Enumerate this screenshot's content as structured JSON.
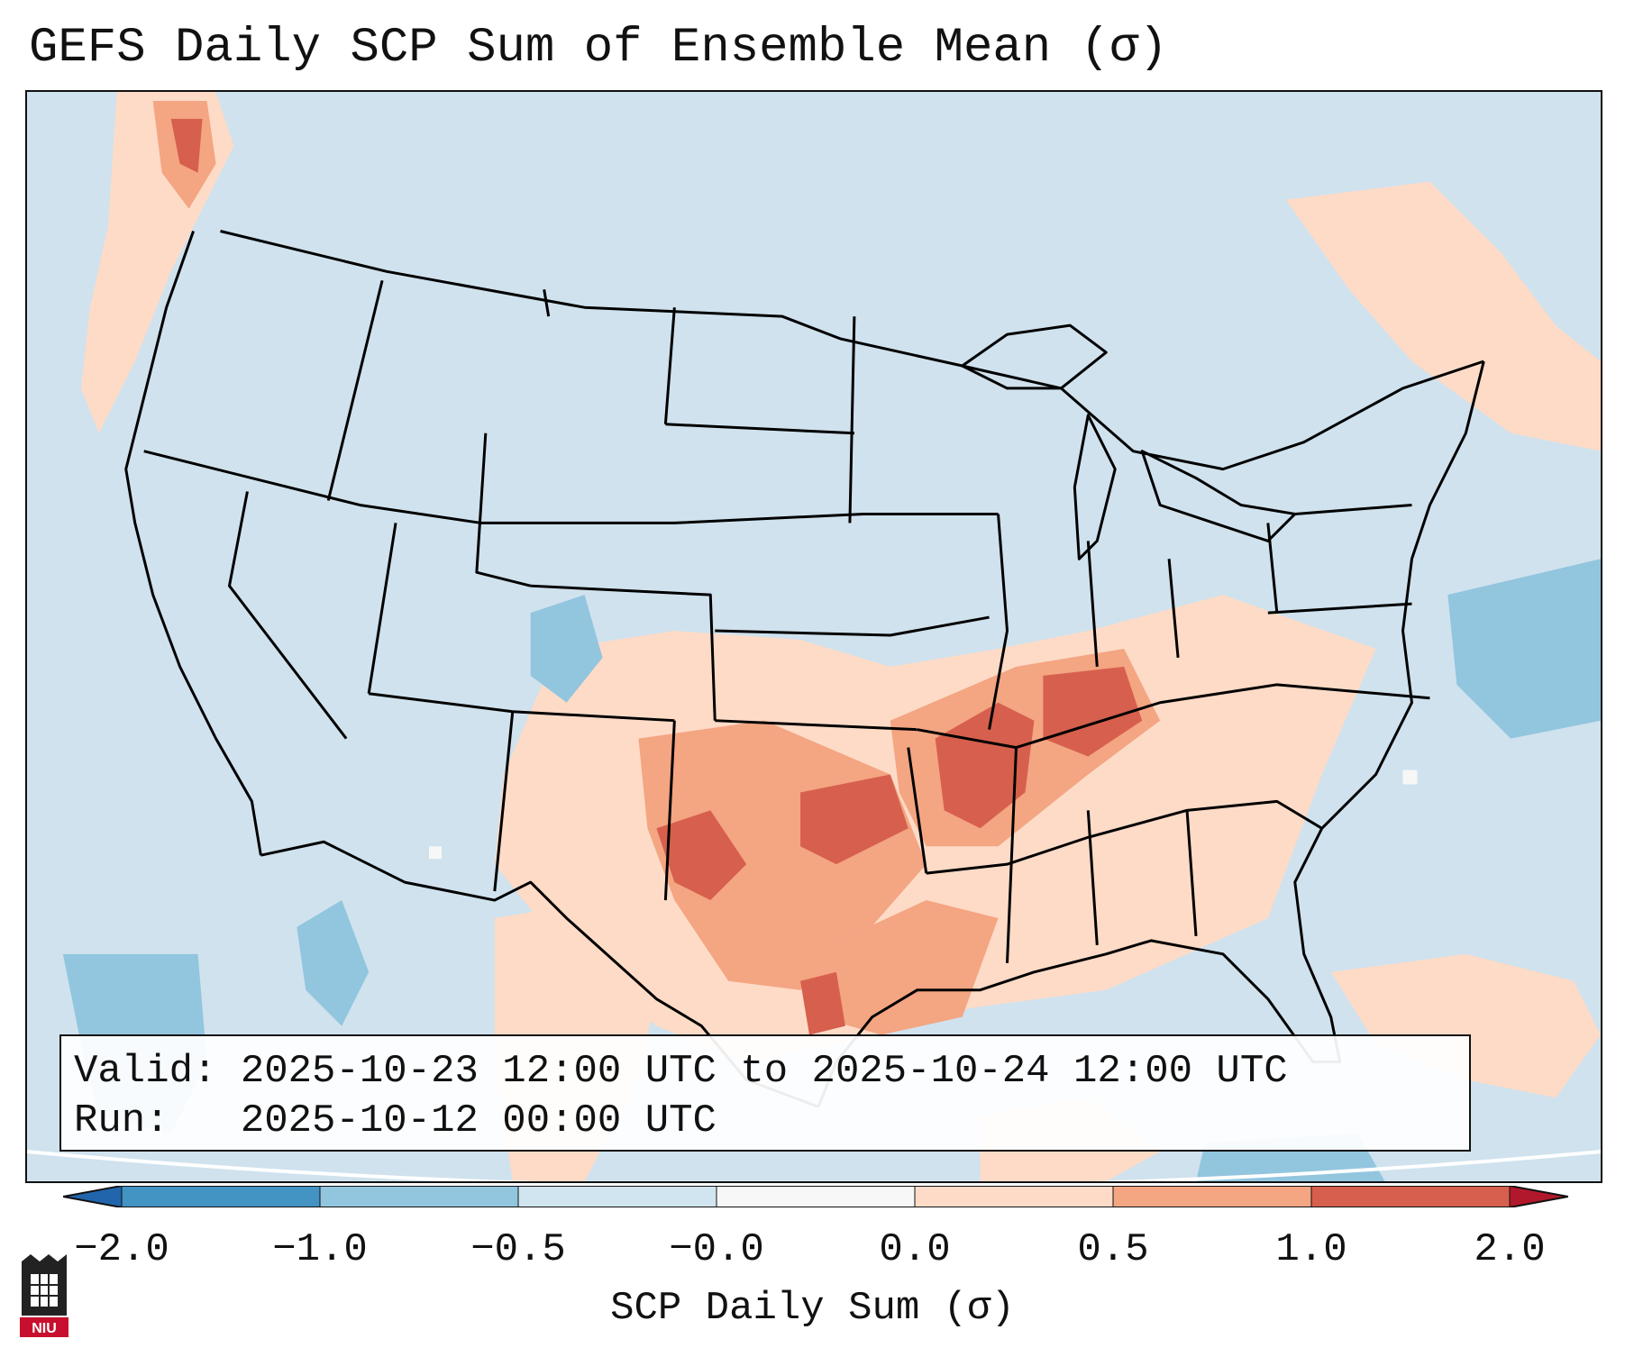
{
  "title": "GEFS Daily SCP Sum of Ensemble Mean (σ)",
  "info": {
    "valid_label": "Valid:",
    "valid_value": "2025-10-23 12:00 UTC to 2025-10-24 12:00 UTC",
    "run_label": "Run:",
    "run_value": "2025-10-12 00:00 UTC"
  },
  "colorbar": {
    "label": "SCP Daily Sum (σ)",
    "ticks": [
      "−2.0",
      "−1.0",
      "−0.5",
      "−0.0",
      "0.0",
      "0.5",
      "1.0",
      "2.0"
    ],
    "colors": [
      "#4393c3",
      "#92c5de",
      "#d1e5f0",
      "#f7f7f7",
      "#fddbc7",
      "#f4a582",
      "#d6604d"
    ],
    "extend_low_color": "#2166ac",
    "extend_high_color": "#b2182b"
  },
  "map": {
    "background_color": "#cfe2ee",
    "anomaly_colors": {
      "light_red": "#fddbc7",
      "medium_red": "#f4a582",
      "strong_red": "#d6604d",
      "light_blue": "#92c5de",
      "near_zero": "#f7f7f7"
    }
  },
  "logo": {
    "text": "NIU"
  }
}
